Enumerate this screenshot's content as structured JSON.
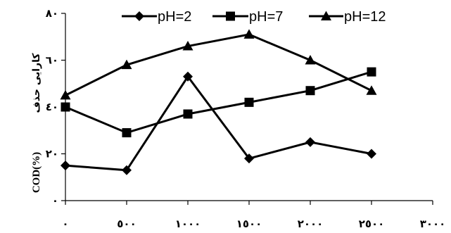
{
  "chart_data": {
    "type": "line",
    "x": [
      0,
      500,
      1000,
      1500,
      2000,
      2500
    ],
    "xlim": [
      0,
      3000
    ],
    "ylim": [
      0,
      80
    ],
    "x_tick_values": [
      0,
      500,
      1000,
      1500,
      2000,
      2500,
      3000
    ],
    "x_tick_labels": [
      "٠",
      "٥٠٠",
      "١٠٠٠",
      "١٥٠٠",
      "٢٠٠٠",
      "٢٥٠٠",
      "٣٠٠٠"
    ],
    "y_tick_values": [
      0,
      20,
      40,
      60,
      80
    ],
    "y_tick_labels": [
      "٠",
      "٢٠",
      "٤٠",
      "٦٠",
      "٨٠"
    ],
    "ylabel": "COD(%)",
    "ylabel_fa": "کارایی حذف",
    "grid": false,
    "legend_position": "top",
    "series": [
      {
        "name": "pH=2",
        "marker": "diamond",
        "values": [
          15,
          13,
          53,
          18,
          25,
          20
        ]
      },
      {
        "name": "pH=7",
        "marker": "square",
        "values": [
          40,
          29,
          37,
          42,
          47,
          55
        ]
      },
      {
        "name": "pH=12",
        "marker": "triangle",
        "values": [
          45,
          58,
          66,
          71,
          60,
          47
        ]
      }
    ]
  }
}
